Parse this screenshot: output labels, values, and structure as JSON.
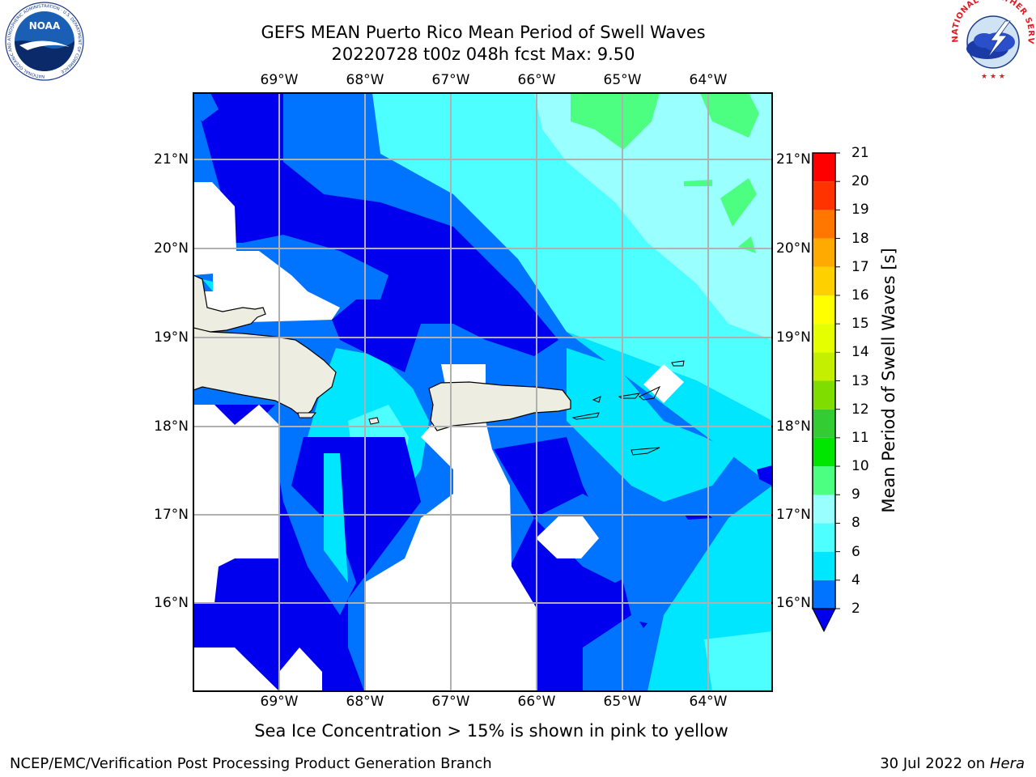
{
  "title_line1": "GEFS MEAN Puerto Rico Mean Period of Swell Waves",
  "title_line2": "20220728 t00z 048h fcst   Max: 9.50",
  "lon_ticks": [
    "69°W",
    "68°W",
    "67°W",
    "66°W",
    "65°W",
    "64°W"
  ],
  "lat_ticks": [
    "21°N",
    "20°N",
    "19°N",
    "18°N",
    "17°N",
    "16°N"
  ],
  "colorbar": {
    "label": "Mean Period of Swell Waves [s]",
    "ticks": [
      "2",
      "4",
      "6",
      "8",
      "9",
      "10",
      "11",
      "12",
      "13",
      "14",
      "15",
      "16",
      "17",
      "18",
      "19",
      "20",
      "21"
    ],
    "colors": [
      "#0000ee",
      "#0073ff",
      "#00e6ff",
      "#4dffff",
      "#99ffff",
      "#4dff80",
      "#00e600",
      "#33cc33",
      "#80dd00",
      "#c4f000",
      "#e6ff00",
      "#ffff00",
      "#ffd000",
      "#ffaa00",
      "#ff7700",
      "#ff3300",
      "#ff0000"
    ]
  },
  "note": "Sea Ice Concentration > 15% is shown in pink to yellow",
  "footer_left": "NCEP/EMC/Verification Post Processing Product Generation Branch",
  "footer_date": "30 Jul 2022 on ",
  "footer_host": "Hera",
  "logos": {
    "noaa_text": "NOAA",
    "noaa_ring": "NATIONAL OCEANIC AND ATMOSPHERIC ADMINISTRATION · U.S. DEPARTMENT OF COMMERCE",
    "nws_ring": "NATIONAL WEATHER SERVICE"
  }
}
